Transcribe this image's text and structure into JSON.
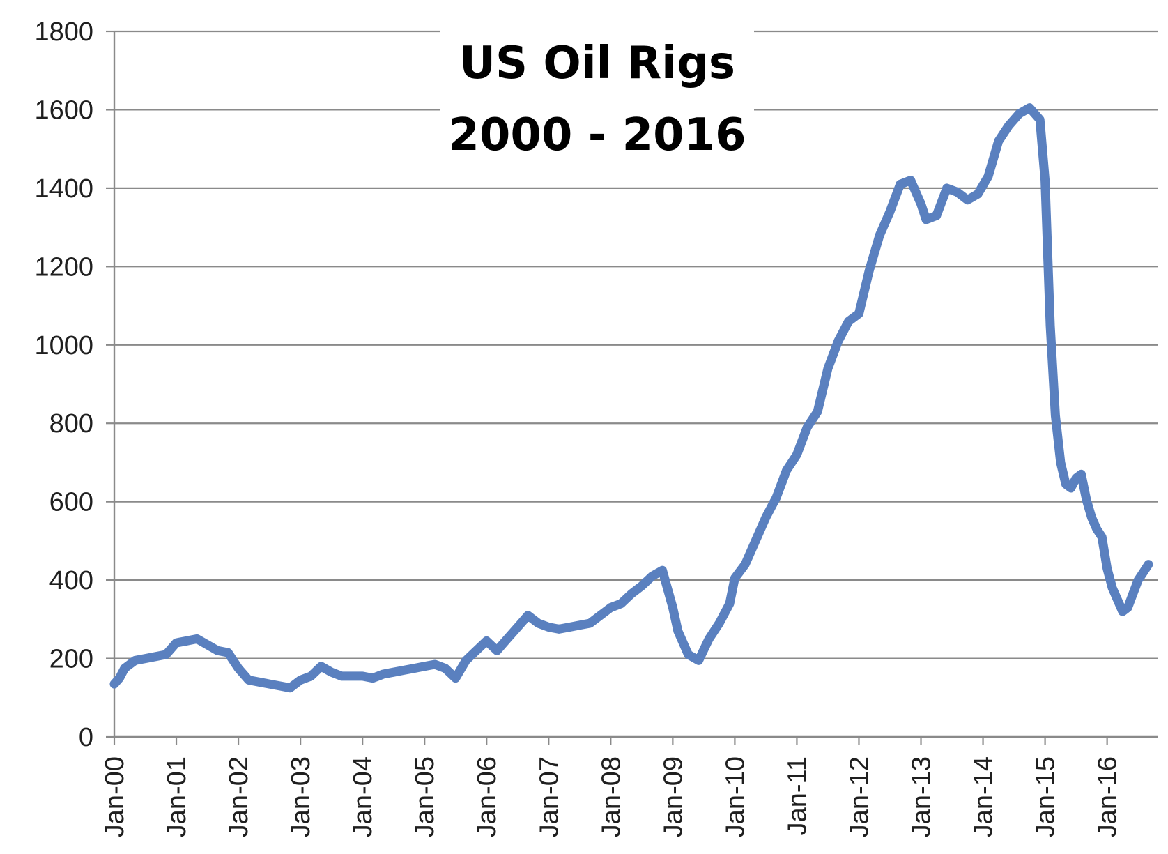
{
  "chart_data": {
    "type": "line",
    "title_line1": "US Oil Rigs",
    "title_line2": "2000 - 2016",
    "xlabel": "",
    "ylabel": "",
    "ylim": [
      0,
      1800
    ],
    "y_ticks": [
      0,
      200,
      400,
      600,
      800,
      1000,
      1200,
      1400,
      1600,
      1800
    ],
    "x_tick_labels": [
      "Jan-00",
      "Jan-01",
      "Jan-02",
      "Jan-03",
      "Jan-04",
      "Jan-05",
      "Jan-06",
      "Jan-07",
      "Jan-08",
      "Jan-09",
      "Jan-10",
      "Jan-11",
      "Jan-12",
      "Jan-13",
      "Jan-14",
      "Jan-15",
      "Jan-16"
    ],
    "x_range": [
      "2000-01",
      "2016-09"
    ],
    "grid": "horizontal",
    "legend": "none",
    "line_color": "#5a80bf",
    "series": [
      {
        "values": [
          [
            "2000-01",
            135
          ],
          [
            "2000-02",
            150
          ],
          [
            "2000-03",
            175
          ],
          [
            "2000-05",
            195
          ],
          [
            "2000-07",
            200
          ],
          [
            "2000-09",
            205
          ],
          [
            "2000-11",
            210
          ],
          [
            "2001-01",
            240
          ],
          [
            "2001-03",
            245
          ],
          [
            "2001-05",
            250
          ],
          [
            "2001-07",
            235
          ],
          [
            "2001-09",
            220
          ],
          [
            "2001-11",
            215
          ],
          [
            "2002-01",
            175
          ],
          [
            "2002-03",
            145
          ],
          [
            "2002-05",
            140
          ],
          [
            "2002-07",
            135
          ],
          [
            "2002-09",
            130
          ],
          [
            "2002-11",
            125
          ],
          [
            "2003-01",
            145
          ],
          [
            "2003-03",
            155
          ],
          [
            "2003-05",
            180
          ],
          [
            "2003-07",
            165
          ],
          [
            "2003-09",
            155
          ],
          [
            "2003-11",
            155
          ],
          [
            "2004-01",
            155
          ],
          [
            "2004-03",
            150
          ],
          [
            "2004-05",
            160
          ],
          [
            "2004-07",
            165
          ],
          [
            "2004-09",
            170
          ],
          [
            "2004-11",
            175
          ],
          [
            "2005-01",
            180
          ],
          [
            "2005-03",
            185
          ],
          [
            "2005-05",
            175
          ],
          [
            "2005-07",
            150
          ],
          [
            "2005-09",
            195
          ],
          [
            "2005-11",
            220
          ],
          [
            "2006-01",
            245
          ],
          [
            "2006-03",
            220
          ],
          [
            "2006-05",
            250
          ],
          [
            "2006-07",
            280
          ],
          [
            "2006-09",
            310
          ],
          [
            "2006-11",
            290
          ],
          [
            "2007-01",
            280
          ],
          [
            "2007-03",
            275
          ],
          [
            "2007-05",
            280
          ],
          [
            "2007-07",
            285
          ],
          [
            "2007-09",
            290
          ],
          [
            "2007-11",
            310
          ],
          [
            "2008-01",
            330
          ],
          [
            "2008-03",
            340
          ],
          [
            "2008-05",
            365
          ],
          [
            "2008-07",
            385
          ],
          [
            "2008-09",
            410
          ],
          [
            "2008-11",
            425
          ],
          [
            "2009-01",
            330
          ],
          [
            "2009-02",
            270
          ],
          [
            "2009-04",
            210
          ],
          [
            "2009-06",
            195
          ],
          [
            "2009-08",
            250
          ],
          [
            "2009-10",
            290
          ],
          [
            "2009-12",
            340
          ],
          [
            "2010-01",
            405
          ],
          [
            "2010-03",
            440
          ],
          [
            "2010-05",
            500
          ],
          [
            "2010-07",
            560
          ],
          [
            "2010-09",
            610
          ],
          [
            "2010-11",
            680
          ],
          [
            "2011-01",
            720
          ],
          [
            "2011-03",
            790
          ],
          [
            "2011-05",
            830
          ],
          [
            "2011-07",
            940
          ],
          [
            "2011-09",
            1010
          ],
          [
            "2011-11",
            1060
          ],
          [
            "2012-01",
            1080
          ],
          [
            "2012-03",
            1190
          ],
          [
            "2012-05",
            1280
          ],
          [
            "2012-07",
            1340
          ],
          [
            "2012-09",
            1410
          ],
          [
            "2012-11",
            1420
          ],
          [
            "2013-01",
            1360
          ],
          [
            "2013-02",
            1320
          ],
          [
            "2013-04",
            1330
          ],
          [
            "2013-06",
            1400
          ],
          [
            "2013-08",
            1390
          ],
          [
            "2013-10",
            1370
          ],
          [
            "2013-12",
            1385
          ],
          [
            "2014-02",
            1430
          ],
          [
            "2014-04",
            1520
          ],
          [
            "2014-06",
            1560
          ],
          [
            "2014-08",
            1590
          ],
          [
            "2014-10",
            1605
          ],
          [
            "2014-12",
            1575
          ],
          [
            "2015-01",
            1420
          ],
          [
            "2015-02",
            1050
          ],
          [
            "2015-03",
            820
          ],
          [
            "2015-04",
            700
          ],
          [
            "2015-05",
            645
          ],
          [
            "2015-06",
            635
          ],
          [
            "2015-07",
            660
          ],
          [
            "2015-08",
            670
          ],
          [
            "2015-09",
            605
          ],
          [
            "2015-10",
            560
          ],
          [
            "2015-11",
            530
          ],
          [
            "2015-12",
            510
          ],
          [
            "2016-01",
            430
          ],
          [
            "2016-02",
            380
          ],
          [
            "2016-03",
            350
          ],
          [
            "2016-04",
            320
          ],
          [
            "2016-05",
            330
          ],
          [
            "2016-06",
            365
          ],
          [
            "2016-07",
            400
          ],
          [
            "2016-08",
            420
          ],
          [
            "2016-09",
            440
          ]
        ]
      }
    ]
  }
}
